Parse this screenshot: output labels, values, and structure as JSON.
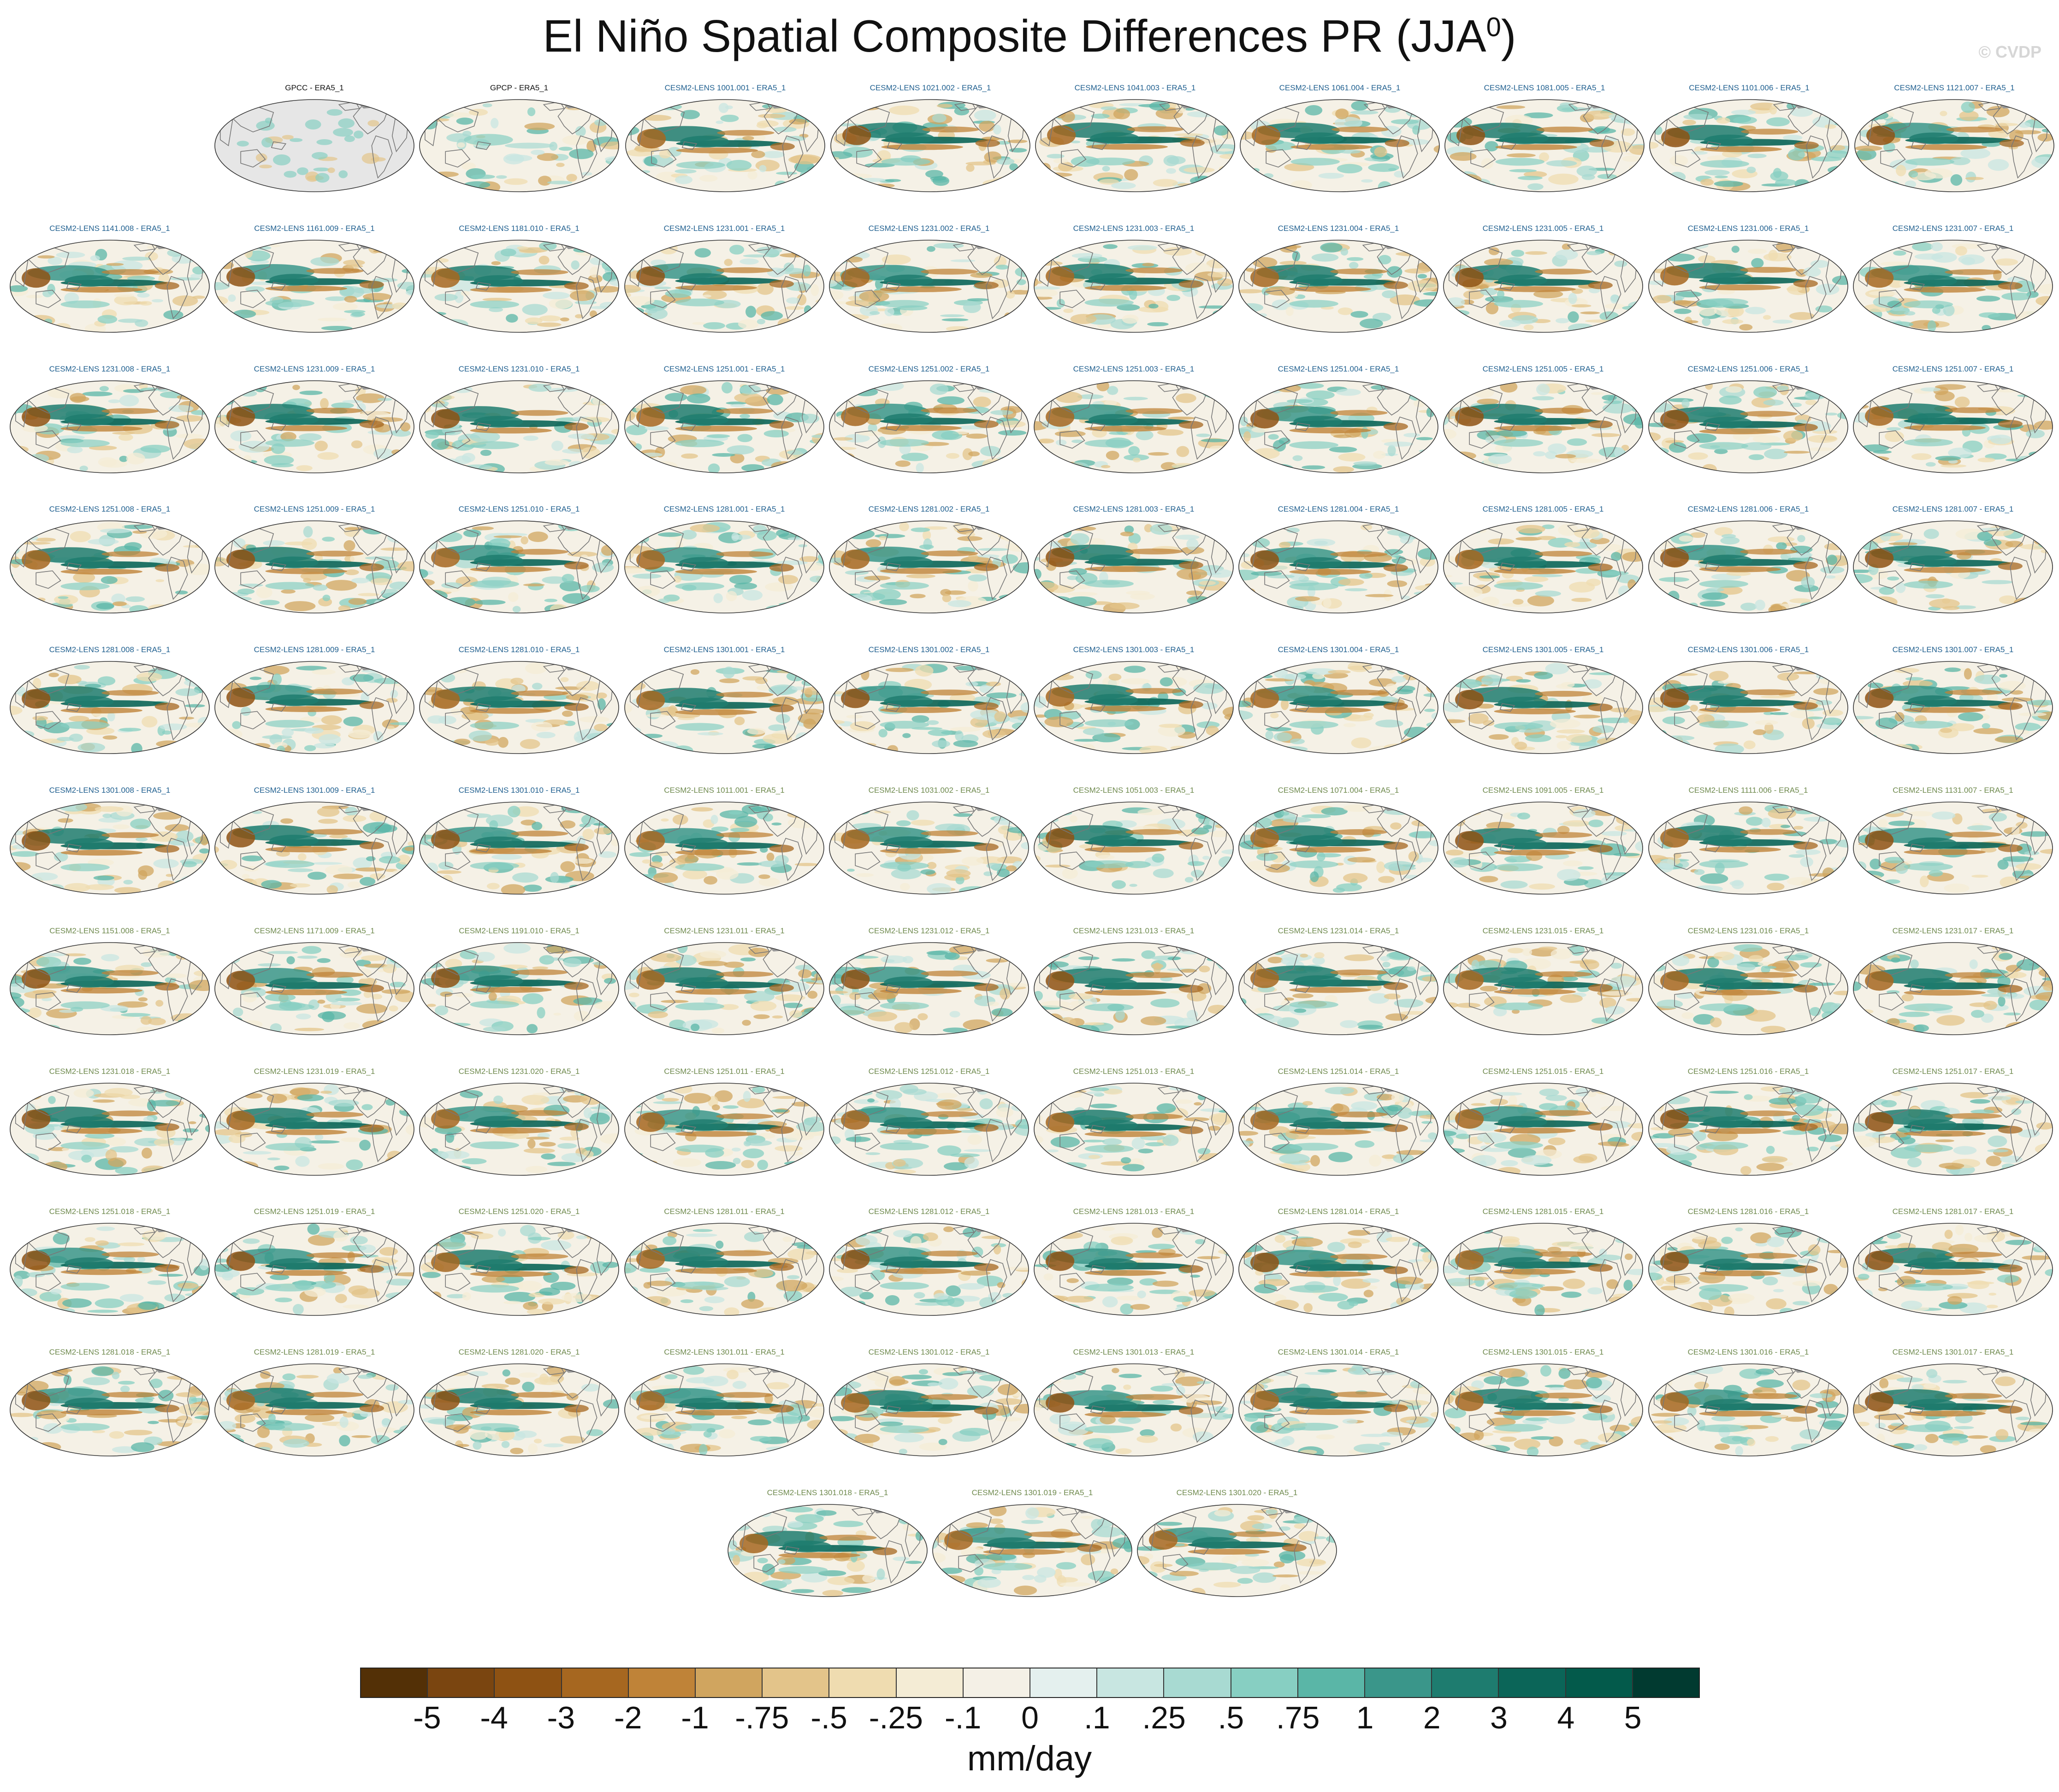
{
  "title": {
    "text": "El Niño Spatial Composite Differences PR (JJA",
    "sup": "0",
    "close": ")"
  },
  "watermark": "© CVDP",
  "chart_data": {
    "type": "heatmap",
    "title": "El Niño Spatial Composite Differences PR (JJA0)",
    "projection": "Robinson global map",
    "colorbar": {
      "units": "mm/day",
      "tick_labels": [
        "-5",
        "-4",
        "-3",
        "-2",
        "-1",
        "-.75",
        "-.5",
        "-.25",
        "-.1",
        "0",
        ".1",
        ".25",
        ".5",
        ".75",
        "1",
        "2",
        "3",
        "4",
        "5"
      ],
      "colors": [
        "#533006",
        "#7a4510",
        "#8e5213",
        "#a66720",
        "#bf8338",
        "#d0a55f",
        "#e3c48a",
        "#efdcb0",
        "#f4ecd5",
        "#f4f0e6",
        "#e4f0ee",
        "#c8e6e1",
        "#a8dad2",
        "#87cfc2",
        "#5ab6a7",
        "#3a968a",
        "#1e7c6f",
        "#0b6558",
        "#035a4b",
        "#013a30"
      ]
    },
    "panels": [
      {
        "label": "GPCC - ERA5_1",
        "group": "obs",
        "land_masked": true
      },
      {
        "label": "GPCP - ERA5_1",
        "group": "obs"
      },
      {
        "label": "CESM2-LENS 1001.001 - ERA5_1",
        "group": "a"
      },
      {
        "label": "CESM2-LENS 1021.002 - ERA5_1",
        "group": "a"
      },
      {
        "label": "CESM2-LENS 1041.003 - ERA5_1",
        "group": "a"
      },
      {
        "label": "CESM2-LENS 1061.004 - ERA5_1",
        "group": "a"
      },
      {
        "label": "CESM2-LENS 1081.005 - ERA5_1",
        "group": "a"
      },
      {
        "label": "CESM2-LENS 1101.006 - ERA5_1",
        "group": "a"
      },
      {
        "label": "CESM2-LENS 1121.007 - ERA5_1",
        "group": "a"
      },
      {
        "label": "CESM2-LENS 1141.008 - ERA5_1",
        "group": "a"
      },
      {
        "label": "CESM2-LENS 1161.009 - ERA5_1",
        "group": "a"
      },
      {
        "label": "CESM2-LENS 1181.010 - ERA5_1",
        "group": "a"
      },
      {
        "label": "CESM2-LENS 1231.001 - ERA5_1",
        "group": "a"
      },
      {
        "label": "CESM2-LENS 1231.002 - ERA5_1",
        "group": "a"
      },
      {
        "label": "CESM2-LENS 1231.003 - ERA5_1",
        "group": "a"
      },
      {
        "label": "CESM2-LENS 1231.004 - ERA5_1",
        "group": "a"
      },
      {
        "label": "CESM2-LENS 1231.005 - ERA5_1",
        "group": "a"
      },
      {
        "label": "CESM2-LENS 1231.006 - ERA5_1",
        "group": "a"
      },
      {
        "label": "CESM2-LENS 1231.007 - ERA5_1",
        "group": "a"
      },
      {
        "label": "CESM2-LENS 1231.008 - ERA5_1",
        "group": "a"
      },
      {
        "label": "CESM2-LENS 1231.009 - ERA5_1",
        "group": "a"
      },
      {
        "label": "CESM2-LENS 1231.010 - ERA5_1",
        "group": "a"
      },
      {
        "label": "CESM2-LENS 1251.001 - ERA5_1",
        "group": "a"
      },
      {
        "label": "CESM2-LENS 1251.002 - ERA5_1",
        "group": "a"
      },
      {
        "label": "CESM2-LENS 1251.003 - ERA5_1",
        "group": "a"
      },
      {
        "label": "CESM2-LENS 1251.004 - ERA5_1",
        "group": "a"
      },
      {
        "label": "CESM2-LENS 1251.005 - ERA5_1",
        "group": "a"
      },
      {
        "label": "CESM2-LENS 1251.006 - ERA5_1",
        "group": "a"
      },
      {
        "label": "CESM2-LENS 1251.007 - ERA5_1",
        "group": "a"
      },
      {
        "label": "CESM2-LENS 1251.008 - ERA5_1",
        "group": "a"
      },
      {
        "label": "CESM2-LENS 1251.009 - ERA5_1",
        "group": "a"
      },
      {
        "label": "CESM2-LENS 1251.010 - ERA5_1",
        "group": "a"
      },
      {
        "label": "CESM2-LENS 1281.001 - ERA5_1",
        "group": "a"
      },
      {
        "label": "CESM2-LENS 1281.002 - ERA5_1",
        "group": "a"
      },
      {
        "label": "CESM2-LENS 1281.003 - ERA5_1",
        "group": "a"
      },
      {
        "label": "CESM2-LENS 1281.004 - ERA5_1",
        "group": "a"
      },
      {
        "label": "CESM2-LENS 1281.005 - ERA5_1",
        "group": "a"
      },
      {
        "label": "CESM2-LENS 1281.006 - ERA5_1",
        "group": "a"
      },
      {
        "label": "CESM2-LENS 1281.007 - ERA5_1",
        "group": "a"
      },
      {
        "label": "CESM2-LENS 1281.008 - ERA5_1",
        "group": "a"
      },
      {
        "label": "CESM2-LENS 1281.009 - ERA5_1",
        "group": "a"
      },
      {
        "label": "CESM2-LENS 1281.010 - ERA5_1",
        "group": "a"
      },
      {
        "label": "CESM2-LENS 1301.001 - ERA5_1",
        "group": "a"
      },
      {
        "label": "CESM2-LENS 1301.002 - ERA5_1",
        "group": "a"
      },
      {
        "label": "CESM2-LENS 1301.003 - ERA5_1",
        "group": "a"
      },
      {
        "label": "CESM2-LENS 1301.004 - ERA5_1",
        "group": "a"
      },
      {
        "label": "CESM2-LENS 1301.005 - ERA5_1",
        "group": "a"
      },
      {
        "label": "CESM2-LENS 1301.006 - ERA5_1",
        "group": "a"
      },
      {
        "label": "CESM2-LENS 1301.007 - ERA5_1",
        "group": "a"
      },
      {
        "label": "CESM2-LENS 1301.008 - ERA5_1",
        "group": "a"
      },
      {
        "label": "CESM2-LENS 1301.009 - ERA5_1",
        "group": "a"
      },
      {
        "label": "CESM2-LENS 1301.010 - ERA5_1",
        "group": "a"
      },
      {
        "label": "CESM2-LENS 1011.001 - ERA5_1",
        "group": "b"
      },
      {
        "label": "CESM2-LENS 1031.002 - ERA5_1",
        "group": "b"
      },
      {
        "label": "CESM2-LENS 1051.003 - ERA5_1",
        "group": "b"
      },
      {
        "label": "CESM2-LENS 1071.004 - ERA5_1",
        "group": "b"
      },
      {
        "label": "CESM2-LENS 1091.005 - ERA5_1",
        "group": "b"
      },
      {
        "label": "CESM2-LENS 1111.006 - ERA5_1",
        "group": "b"
      },
      {
        "label": "CESM2-LENS 1131.007 - ERA5_1",
        "group": "b"
      },
      {
        "label": "CESM2-LENS 1151.008 - ERA5_1",
        "group": "b"
      },
      {
        "label": "CESM2-LENS 1171.009 - ERA5_1",
        "group": "b"
      },
      {
        "label": "CESM2-LENS 1191.010 - ERA5_1",
        "group": "b"
      },
      {
        "label": "CESM2-LENS 1231.011 - ERA5_1",
        "group": "b"
      },
      {
        "label": "CESM2-LENS 1231.012 - ERA5_1",
        "group": "b"
      },
      {
        "label": "CESM2-LENS 1231.013 - ERA5_1",
        "group": "b"
      },
      {
        "label": "CESM2-LENS 1231.014 - ERA5_1",
        "group": "b"
      },
      {
        "label": "CESM2-LENS 1231.015 - ERA5_1",
        "group": "b"
      },
      {
        "label": "CESM2-LENS 1231.016 - ERA5_1",
        "group": "b"
      },
      {
        "label": "CESM2-LENS 1231.017 - ERA5_1",
        "group": "b"
      },
      {
        "label": "CESM2-LENS 1231.018 - ERA5_1",
        "group": "b"
      },
      {
        "label": "CESM2-LENS 1231.019 - ERA5_1",
        "group": "b"
      },
      {
        "label": "CESM2-LENS 1231.020 - ERA5_1",
        "group": "b"
      },
      {
        "label": "CESM2-LENS 1251.011 - ERA5_1",
        "group": "b"
      },
      {
        "label": "CESM2-LENS 1251.012 - ERA5_1",
        "group": "b"
      },
      {
        "label": "CESM2-LENS 1251.013 - ERA5_1",
        "group": "b"
      },
      {
        "label": "CESM2-LENS 1251.014 - ERA5_1",
        "group": "b"
      },
      {
        "label": "CESM2-LENS 1251.015 - ERA5_1",
        "group": "b"
      },
      {
        "label": "CESM2-LENS 1251.016 - ERA5_1",
        "group": "b"
      },
      {
        "label": "CESM2-LENS 1251.017 - ERA5_1",
        "group": "b"
      },
      {
        "label": "CESM2-LENS 1251.018 - ERA5_1",
        "group": "b"
      },
      {
        "label": "CESM2-LENS 1251.019 - ERA5_1",
        "group": "b"
      },
      {
        "label": "CESM2-LENS 1251.020 - ERA5_1",
        "group": "b"
      },
      {
        "label": "CESM2-LENS 1281.011 - ERA5_1",
        "group": "b"
      },
      {
        "label": "CESM2-LENS 1281.012 - ERA5_1",
        "group": "b"
      },
      {
        "label": "CESM2-LENS 1281.013 - ERA5_1",
        "group": "b"
      },
      {
        "label": "CESM2-LENS 1281.014 - ERA5_1",
        "group": "b"
      },
      {
        "label": "CESM2-LENS 1281.015 - ERA5_1",
        "group": "b"
      },
      {
        "label": "CESM2-LENS 1281.016 - ERA5_1",
        "group": "b"
      },
      {
        "label": "CESM2-LENS 1281.017 - ERA5_1",
        "group": "b"
      },
      {
        "label": "CESM2-LENS 1281.018 - ERA5_1",
        "group": "b"
      },
      {
        "label": "CESM2-LENS 1281.019 - ERA5_1",
        "group": "b"
      },
      {
        "label": "CESM2-LENS 1281.020 - ERA5_1",
        "group": "b"
      },
      {
        "label": "CESM2-LENS 1301.011 - ERA5_1",
        "group": "b"
      },
      {
        "label": "CESM2-LENS 1301.012 - ERA5_1",
        "group": "b"
      },
      {
        "label": "CESM2-LENS 1301.013 - ERA5_1",
        "group": "b"
      },
      {
        "label": "CESM2-LENS 1301.014 - ERA5_1",
        "group": "b"
      },
      {
        "label": "CESM2-LENS 1301.015 - ERA5_1",
        "group": "b"
      },
      {
        "label": "CESM2-LENS 1301.016 - ERA5_1",
        "group": "b"
      },
      {
        "label": "CESM2-LENS 1301.017 - ERA5_1",
        "group": "b"
      },
      {
        "label": "CESM2-LENS 1301.018 - ERA5_1",
        "group": "b"
      },
      {
        "label": "CESM2-LENS 1301.019 - ERA5_1",
        "group": "b"
      },
      {
        "label": "CESM2-LENS 1301.020 - ERA5_1",
        "group": "b"
      }
    ],
    "label_colors": {
      "obs": "#111111",
      "a": "#1f5f8f",
      "b": "#6f8a4e"
    }
  }
}
